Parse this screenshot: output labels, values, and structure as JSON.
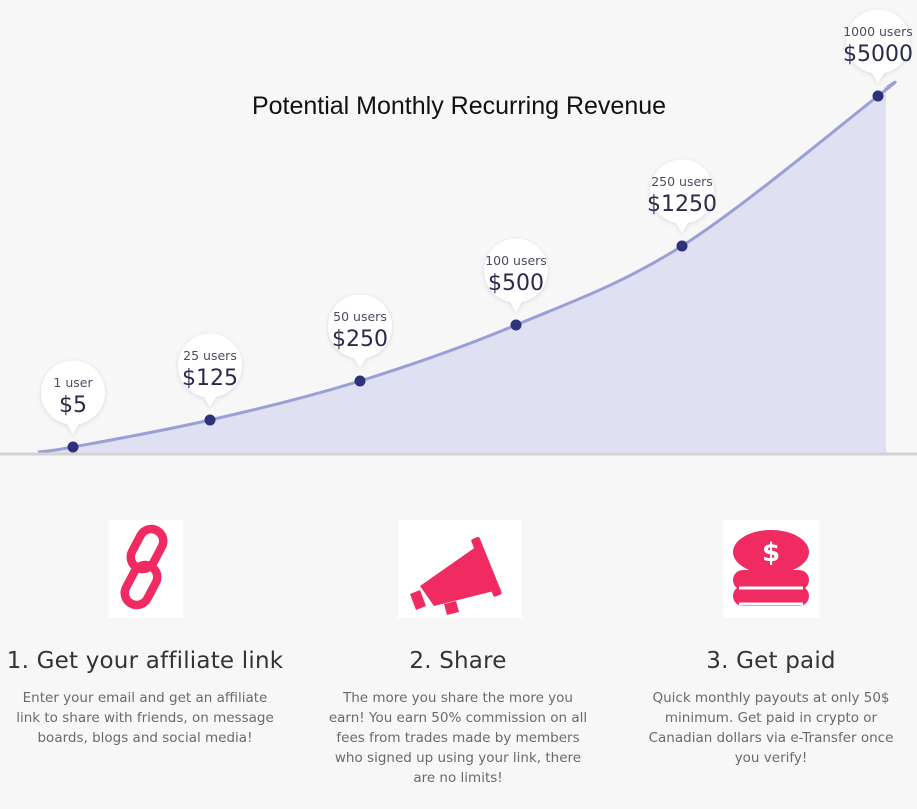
{
  "colors": {
    "accent": "#ef2b62",
    "curve": "#9a9fd6",
    "fill": "#dfe1f2",
    "point": "#2d327a",
    "baseline": "#d3d3d6"
  },
  "chart_data": {
    "type": "area",
    "title": "Potential Monthly Recurring Revenue",
    "xlabel": "",
    "ylabel": "",
    "grid": false,
    "points": [
      {
        "users_label": "1 user",
        "revenue_label": "$5",
        "users": 1,
        "revenue": 5
      },
      {
        "users_label": "25 users",
        "revenue_label": "$125",
        "users": 25,
        "revenue": 125
      },
      {
        "users_label": "50 users",
        "revenue_label": "$250",
        "users": 50,
        "revenue": 250
      },
      {
        "users_label": "100 users",
        "revenue_label": "$500",
        "users": 100,
        "revenue": 500
      },
      {
        "users_label": "250 users",
        "revenue_label": "$1250",
        "users": 250,
        "revenue": 1250
      },
      {
        "users_label": "1000 users",
        "revenue_label": "$5000",
        "users": 1000,
        "revenue": 5000
      }
    ]
  },
  "steps": [
    {
      "icon": "chain-link-icon",
      "title": "1. Get your affiliate link",
      "text": "Enter your email and get an affiliate link to share with friends, on message boards, blogs and social media!"
    },
    {
      "icon": "megaphone-icon",
      "title": "2. Share",
      "text": "The more you share the more you earn! You earn 50% commission on all fees from trades made by members who signed up using your link, there are no limits!"
    },
    {
      "icon": "coin-stack-icon",
      "title": "3. Get paid",
      "text": "Quick monthly payouts at only 50$ minimum. Get paid in crypto or Canadian dollars via e-Transfer once you verify!"
    }
  ]
}
